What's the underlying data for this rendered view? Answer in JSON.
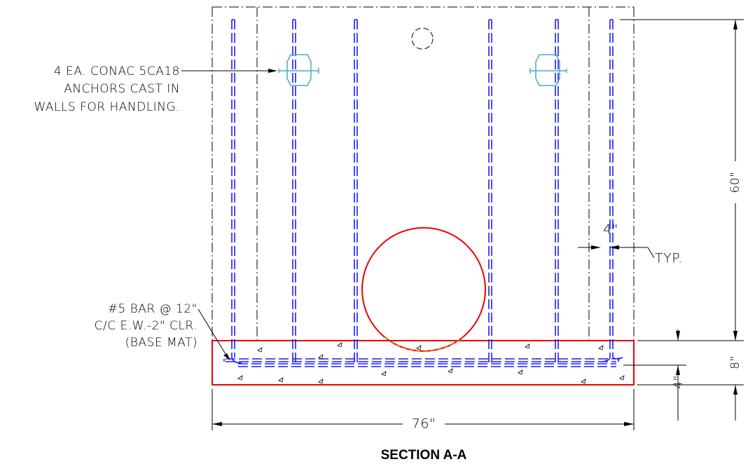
{
  "title": "SECTION A-A",
  "notes": {
    "anchors": [
      "4 EA. CONAC 5CA18",
      "ANCHORS CAST IN",
      "WALLS FOR HANDLING."
    ],
    "base_mat": [
      "#5 BAR @ 12\"",
      "C/C E.W.-2\" CLR.",
      "(BASE MAT)"
    ]
  },
  "dimensions": {
    "wall_height": "60\"",
    "width": "76\"",
    "cover": "4\"",
    "cover_note": "TYP.",
    "mat_thickness": "8\"",
    "mat_cover": "4\""
  }
}
